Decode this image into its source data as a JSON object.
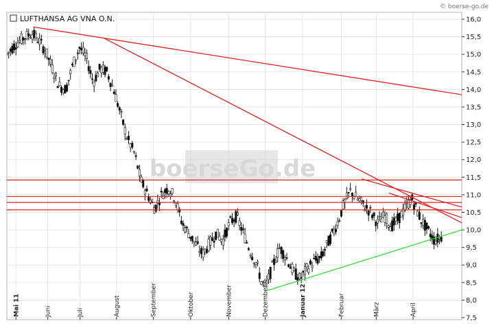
{
  "source_label": "© boerse-go.de",
  "watermark": "boerseGo.de",
  "chart_data": {
    "type": "candlestick",
    "title": "LUFTHANSA AG VNA O.N.",
    "ylim": [
      7.5,
      16.0
    ],
    "y_ticks": [
      7.5,
      8.0,
      8.5,
      9.0,
      9.5,
      10.0,
      10.5,
      11.0,
      11.5,
      12.0,
      12.5,
      13.0,
      13.5,
      14.0,
      14.5,
      15.0,
      15.5,
      16.0
    ],
    "y_tick_labels": [
      "7,5",
      "8,0",
      "8,5",
      "9,0",
      "9,5",
      "10,0",
      "10,5",
      "11,0",
      "11,5",
      "12,0",
      "12,5",
      "13,0",
      "13,5",
      "14,0",
      "14,5",
      "15,0",
      "15,5",
      "16,0"
    ],
    "grid": true,
    "legend": "none",
    "months": [
      {
        "label": "Mai 11",
        "major": true,
        "pos": 0.02
      },
      {
        "label": "Juni",
        "major": false,
        "pos": 0.09
      },
      {
        "label": "Juli",
        "major": false,
        "pos": 0.161
      },
      {
        "label": "August",
        "major": false,
        "pos": 0.241
      },
      {
        "label": "September",
        "major": false,
        "pos": 0.322
      },
      {
        "label": "Oktober",
        "major": false,
        "pos": 0.404
      },
      {
        "label": "November",
        "major": false,
        "pos": 0.488
      },
      {
        "label": "Dezember",
        "major": false,
        "pos": 0.568
      },
      {
        "label": "Januar 12",
        "major": true,
        "pos": 0.65
      },
      {
        "label": "Februar",
        "major": false,
        "pos": 0.735
      },
      {
        "label": "März",
        "major": false,
        "pos": 0.812
      },
      {
        "label": "April",
        "major": false,
        "pos": 0.893
      }
    ],
    "price_path": [
      [
        0.0,
        15.0
      ],
      [
        0.02,
        15.3
      ],
      [
        0.04,
        15.5
      ],
      [
        0.055,
        15.6
      ],
      [
        0.07,
        15.4
      ],
      [
        0.085,
        15.1
      ],
      [
        0.1,
        14.6
      ],
      [
        0.115,
        14.1
      ],
      [
        0.13,
        14.0
      ],
      [
        0.145,
        14.7
      ],
      [
        0.16,
        15.2
      ],
      [
        0.175,
        14.9
      ],
      [
        0.19,
        14.2
      ],
      [
        0.205,
        14.6
      ],
      [
        0.22,
        14.5
      ],
      [
        0.235,
        14.0
      ],
      [
        0.25,
        13.3
      ],
      [
        0.265,
        12.6
      ],
      [
        0.28,
        12.2
      ],
      [
        0.295,
        11.4
      ],
      [
        0.31,
        11.0
      ],
      [
        0.325,
        10.6
      ],
      [
        0.34,
        11.0
      ],
      [
        0.355,
        11.2
      ],
      [
        0.37,
        10.9
      ],
      [
        0.385,
        10.2
      ],
      [
        0.4,
        9.9
      ],
      [
        0.415,
        9.6
      ],
      [
        0.43,
        9.3
      ],
      [
        0.445,
        9.6
      ],
      [
        0.46,
        9.9
      ],
      [
        0.475,
        9.7
      ],
      [
        0.49,
        10.2
      ],
      [
        0.505,
        10.4
      ],
      [
        0.52,
        9.9
      ],
      [
        0.535,
        9.4
      ],
      [
        0.55,
        9.0
      ],
      [
        0.56,
        8.5
      ],
      [
        0.57,
        8.4
      ],
      [
        0.585,
        9.0
      ],
      [
        0.6,
        9.5
      ],
      [
        0.615,
        9.2
      ],
      [
        0.63,
        8.8
      ],
      [
        0.645,
        8.6
      ],
      [
        0.66,
        8.9
      ],
      [
        0.675,
        9.1
      ],
      [
        0.69,
        9.2
      ],
      [
        0.705,
        9.6
      ],
      [
        0.72,
        10.0
      ],
      [
        0.73,
        10.3
      ],
      [
        0.74,
        10.7
      ],
      [
        0.755,
        11.1
      ],
      [
        0.77,
        10.9
      ],
      [
        0.785,
        10.7
      ],
      [
        0.8,
        10.5
      ],
      [
        0.815,
        10.2
      ],
      [
        0.83,
        10.4
      ],
      [
        0.845,
        10.1
      ],
      [
        0.86,
        10.3
      ],
      [
        0.875,
        10.6
      ],
      [
        0.89,
        10.9
      ],
      [
        0.9,
        10.6
      ],
      [
        0.91,
        10.3
      ],
      [
        0.925,
        10.0
      ],
      [
        0.94,
        9.7
      ],
      [
        0.955,
        9.8
      ]
    ],
    "trend_lines": [
      {
        "color": "#e02020",
        "points": [
          [
            0.058,
            15.78
          ],
          [
            1.0,
            13.85
          ]
        ]
      },
      {
        "color": "#e02020",
        "points": [
          [
            0.215,
            15.45
          ],
          [
            1.0,
            10.2
          ]
        ]
      },
      {
        "color": "#e02020",
        "points": [
          [
            0.78,
            11.45
          ],
          [
            1.0,
            10.65
          ]
        ]
      },
      {
        "color": "#e02020",
        "points": [
          [
            0.84,
            11.05
          ],
          [
            1.0,
            10.35
          ]
        ]
      },
      {
        "color": "#35e035",
        "points": [
          [
            0.572,
            8.27
          ],
          [
            1.0,
            10.0
          ]
        ]
      }
    ],
    "horizontal_lines": [
      {
        "color": "#e02020",
        "value": 11.42
      },
      {
        "color": "#e02020",
        "value": 10.95
      },
      {
        "color": "#e02020",
        "value": 10.78
      },
      {
        "color": "#e02020",
        "value": 10.57
      }
    ],
    "colors": {
      "up": "#ffffff",
      "down": "#111111",
      "wick": "#111111",
      "background": "#ffffff"
    }
  }
}
